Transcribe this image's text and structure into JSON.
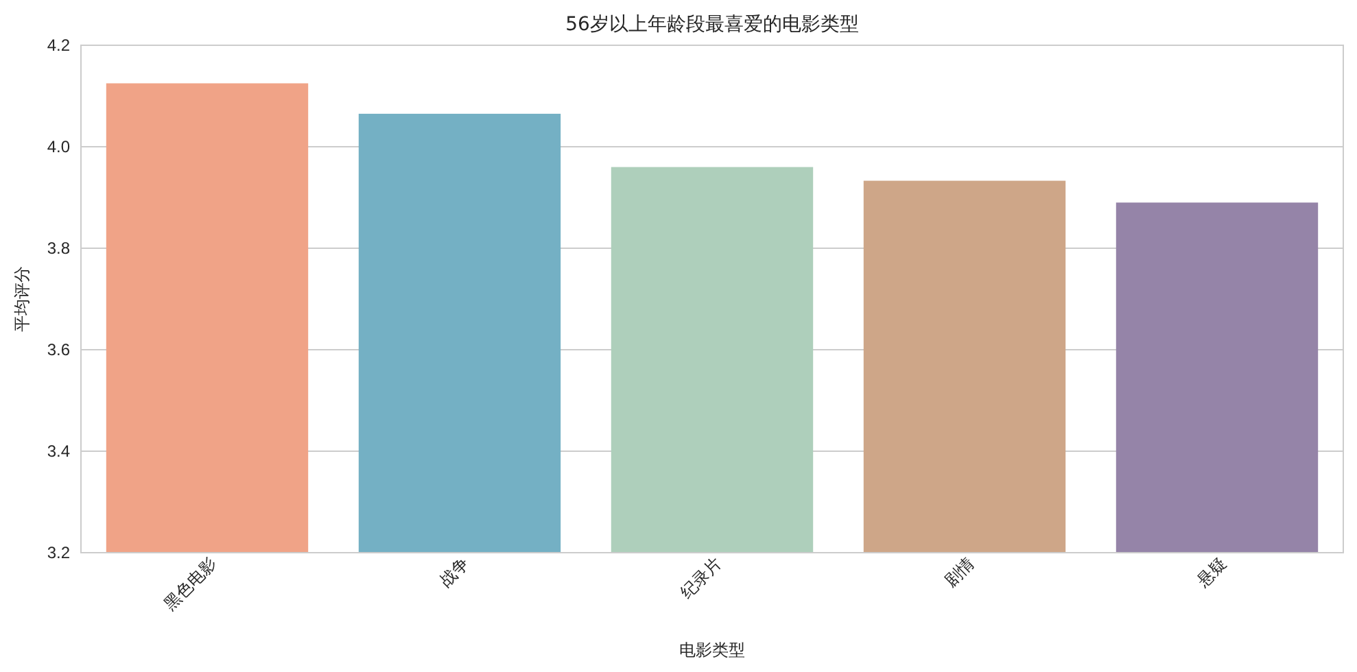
{
  "chart_data": {
    "type": "bar",
    "title": "56岁以上年龄段最喜爱的电影类型",
    "xlabel": "电影类型",
    "ylabel": "平均评分",
    "categories": [
      "黑色电影",
      "战争",
      "纪录片",
      "剧情",
      "悬疑"
    ],
    "values": [
      4.125,
      4.065,
      3.96,
      3.933,
      3.89
    ],
    "colors": [
      "#f0a387",
      "#74b0c4",
      "#aecfbb",
      "#cea688",
      "#9584a8"
    ],
    "ylim": [
      3.2,
      4.2
    ],
    "yticks": [
      3.2,
      3.4,
      3.6,
      3.8,
      {
        "value": 4.0,
        "label": "4.0"
      },
      4.2
    ],
    "grid": "y"
  }
}
